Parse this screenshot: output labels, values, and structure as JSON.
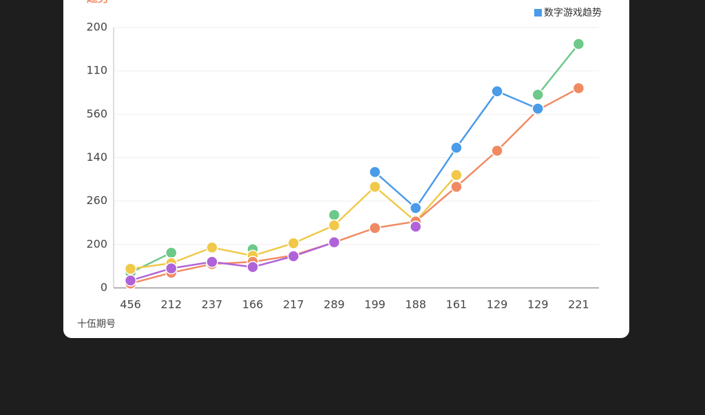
{
  "chart_data": {
    "type": "line",
    "title": "趋势",
    "legend_label": "数字游戏趋势",
    "legend_color": "#4a9be8",
    "x_label": "十伍期号",
    "categories": [
      "456",
      "212",
      "237",
      "166",
      "217",
      "289",
      "199",
      "188",
      "161",
      "129",
      "129",
      "221"
    ],
    "series": [
      {
        "name": "green",
        "color": "#6cc98a",
        "values": [
          0.35,
          0.81,
          null,
          0.89,
          null,
          1.68,
          null,
          null,
          null,
          null,
          4.45,
          5.62
        ]
      },
      {
        "name": "yellow",
        "color": "#f0c94a",
        "values": [
          0.44,
          0.57,
          0.93,
          0.74,
          1.03,
          1.44,
          2.33,
          1.53,
          2.6,
          null,
          null,
          null
        ]
      },
      {
        "name": "orange",
        "color": "#f08a62",
        "values": [
          0.1,
          0.35,
          0.55,
          0.6,
          0.75,
          1.05,
          1.38,
          1.53,
          2.33,
          3.16,
          4.1,
          4.6
        ]
      },
      {
        "name": "purple",
        "color": "#b063d8",
        "values": [
          0.17,
          0.45,
          0.6,
          0.48,
          0.73,
          1.05,
          null,
          1.41,
          null,
          4.53,
          null,
          null
        ]
      },
      {
        "name": "blue",
        "color": "#4a9be8",
        "values": [
          null,
          null,
          null,
          null,
          null,
          null,
          2.67,
          1.84,
          3.23,
          4.53,
          4.13,
          null
        ]
      }
    ],
    "ylim": [
      0,
      6
    ],
    "yticks": [
      {
        "value": 0,
        "label": "0"
      },
      {
        "value": 1,
        "label": "200"
      },
      {
        "value": 2,
        "label": "260"
      },
      {
        "value": 3,
        "label": "140"
      },
      {
        "value": 4,
        "label": "560"
      },
      {
        "value": 5,
        "label": "110"
      },
      {
        "value": 6,
        "label": "200"
      }
    ],
    "grid": true
  }
}
